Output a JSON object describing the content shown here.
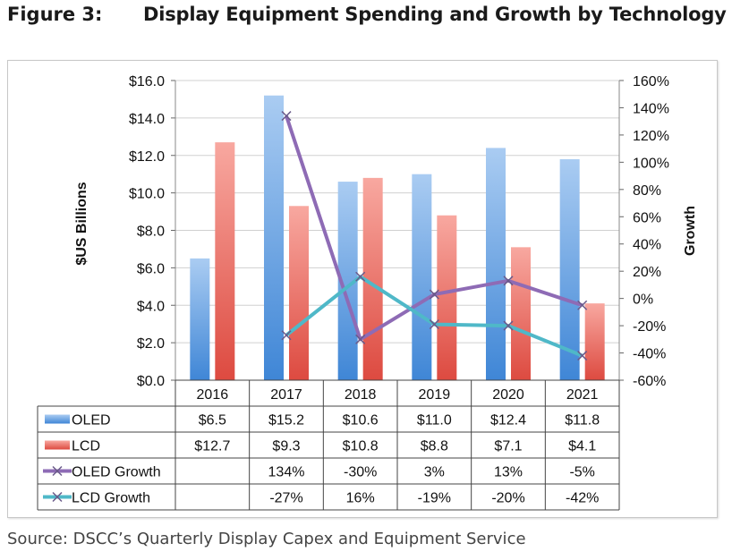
{
  "figure": {
    "number": "Figure 3:",
    "title": "Display Equipment Spending and Growth by Technology",
    "source": "Source: DSCC’s Quarterly Display Capex and Equipment Service"
  },
  "chart_data": {
    "type": "bar",
    "categories": [
      "2016",
      "2017",
      "2018",
      "2019",
      "2020",
      "2021"
    ],
    "series": [
      {
        "name": "OLED",
        "type": "bar",
        "axis": "left",
        "color": "#5b9bd5",
        "values": [
          6.5,
          15.2,
          10.6,
          11.0,
          12.4,
          11.8
        ],
        "labels": [
          "$6.5",
          "$15.2",
          "$10.6",
          "$11.0",
          "$12.4",
          "$11.8"
        ]
      },
      {
        "name": "LCD",
        "type": "bar",
        "axis": "left",
        "color": "#e8605a",
        "values": [
          12.7,
          9.3,
          10.8,
          8.8,
          7.1,
          4.1
        ],
        "labels": [
          "$12.7",
          "$9.3",
          "$10.8",
          "$8.8",
          "$7.1",
          "$4.1"
        ]
      },
      {
        "name": "OLED Growth",
        "type": "line",
        "axis": "right",
        "color": "#8e6bb5",
        "values": [
          null,
          134,
          -30,
          3,
          13,
          -5
        ],
        "labels": [
          "",
          "134%",
          "-30%",
          "3%",
          "13%",
          "-5%"
        ]
      },
      {
        "name": "LCD Growth",
        "type": "line",
        "axis": "right",
        "color": "#4fb8c8",
        "values": [
          null,
          -27,
          16,
          -19,
          -20,
          -42
        ],
        "labels": [
          "",
          "-27%",
          "16%",
          "-19%",
          "-20%",
          "-42%"
        ]
      }
    ],
    "ylabel": "$US Billions",
    "y2label": "Growth",
    "ylim": [
      0,
      16
    ],
    "y2lim": [
      -60,
      160
    ],
    "yticks": [
      "$0.0",
      "$2.0",
      "$4.0",
      "$6.0",
      "$8.0",
      "$10.0",
      "$12.0",
      "$14.0",
      "$16.0"
    ],
    "y2ticks": [
      "-60%",
      "-40%",
      "-20%",
      "0%",
      "20%",
      "40%",
      "60%",
      "80%",
      "100%",
      "120%",
      "140%",
      "160%"
    ],
    "grid": true,
    "legend": "data table below chart"
  }
}
